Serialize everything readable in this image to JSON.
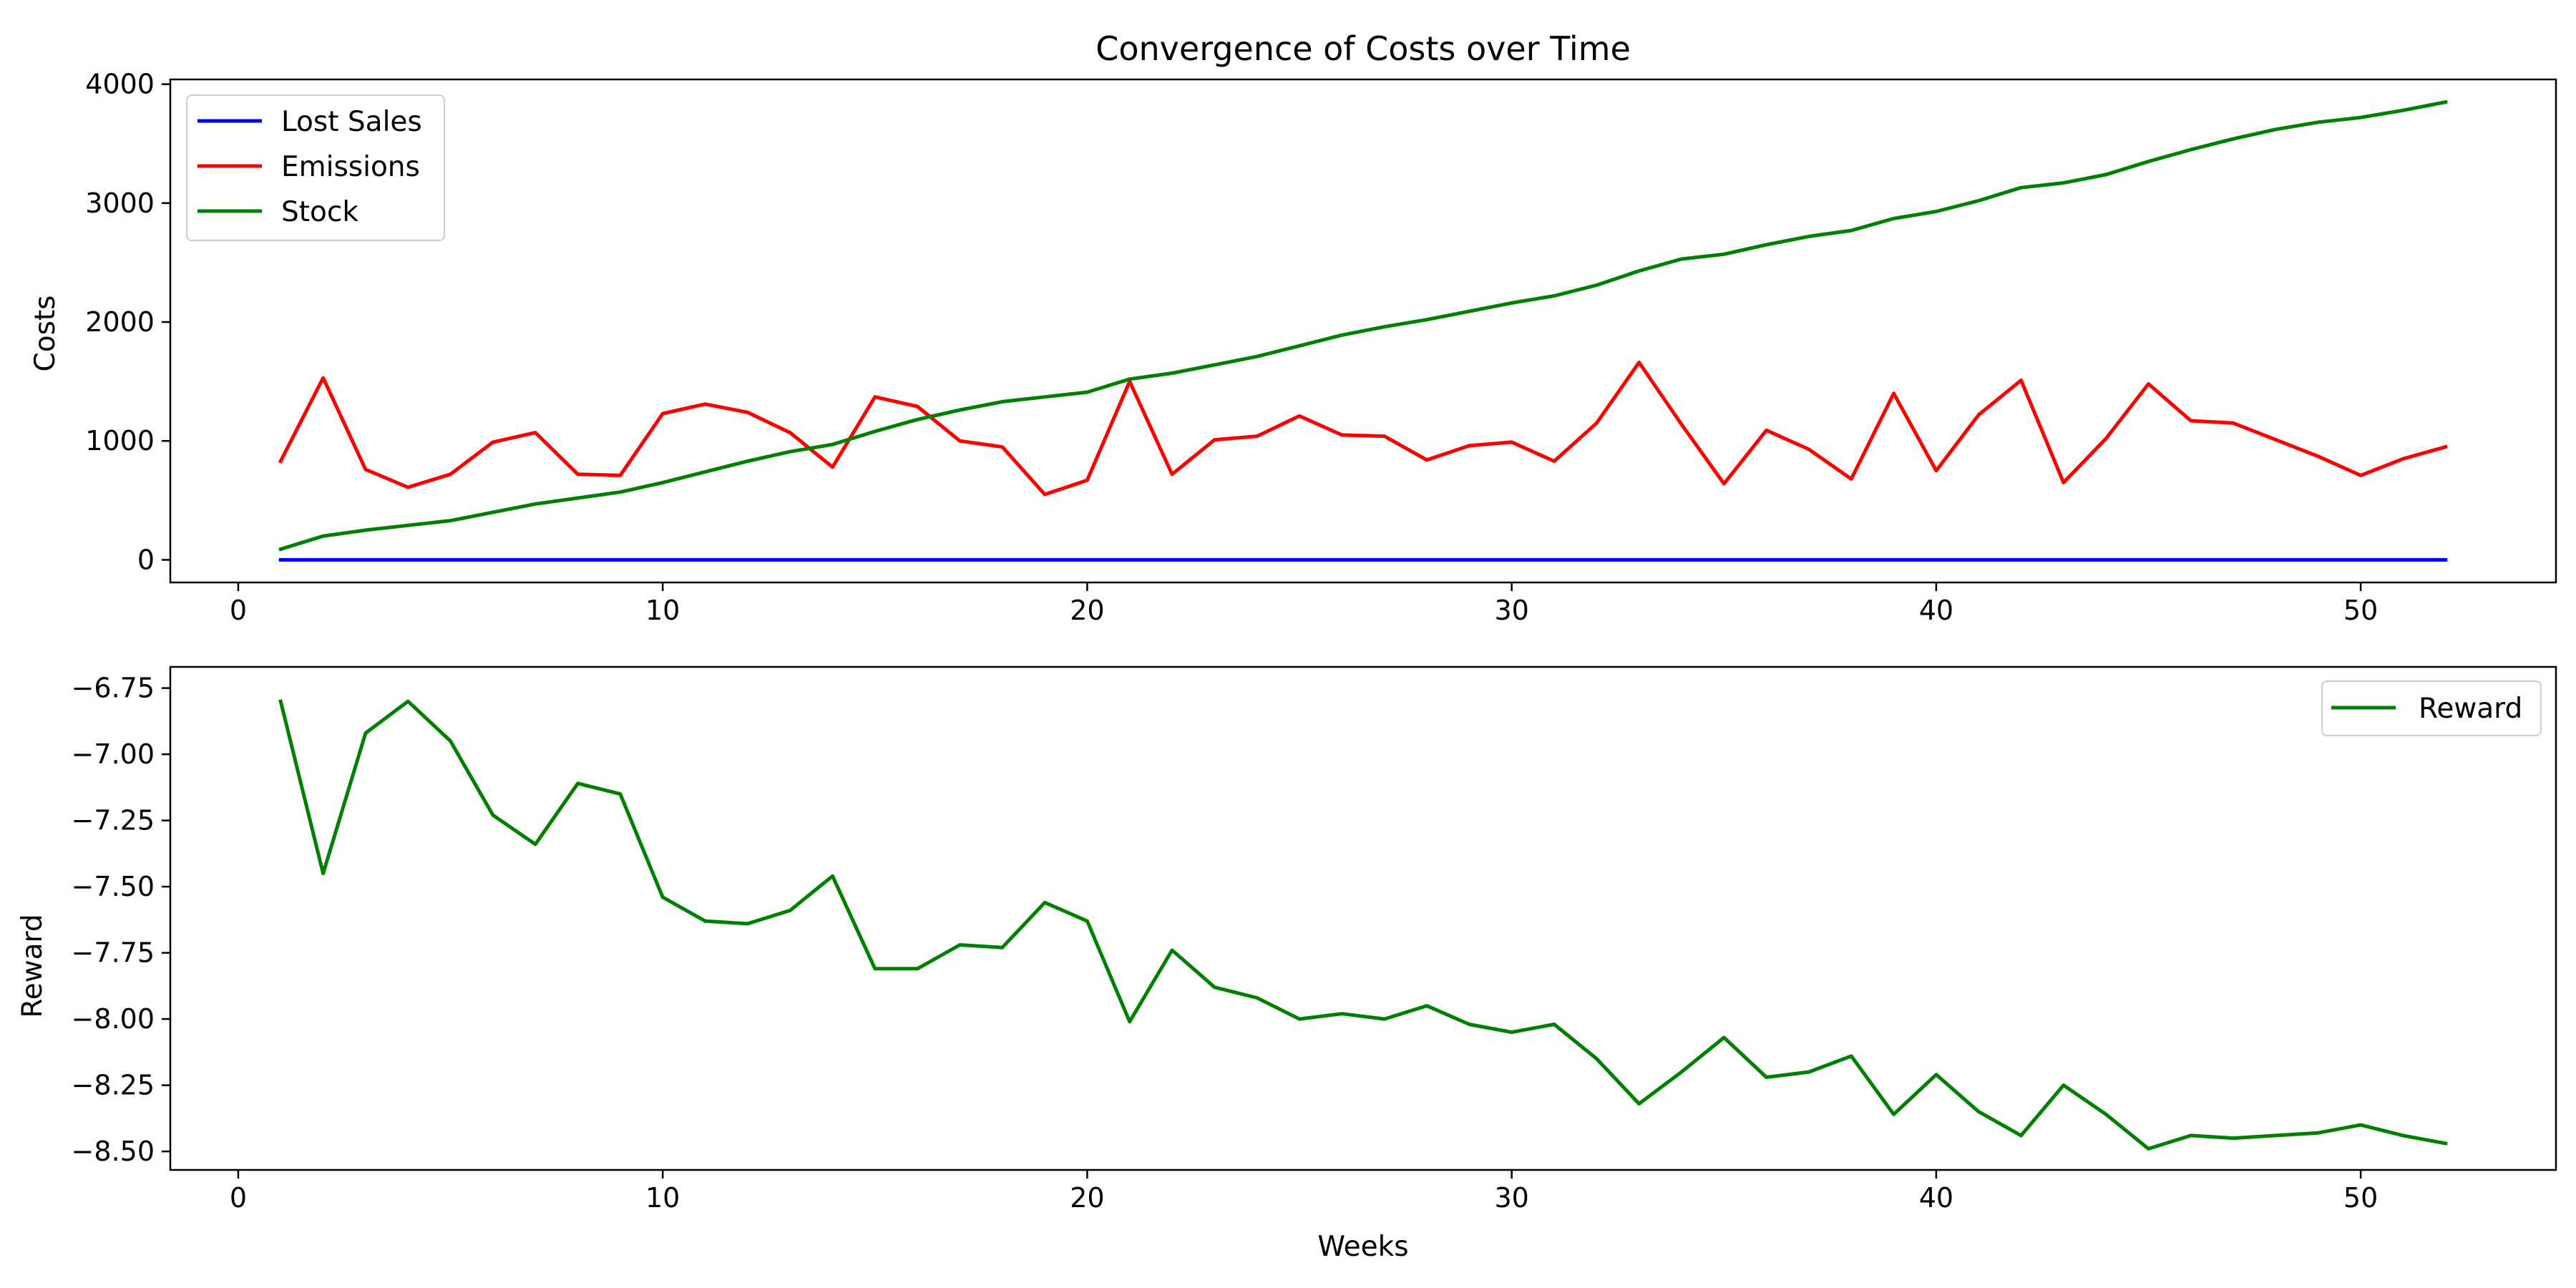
{
  "chart_data": [
    {
      "type": "line",
      "title": "Convergence of Costs over Time",
      "xlabel": "",
      "ylabel": "Costs",
      "xlim": [
        -1.6,
        54.6
      ],
      "ylim": [
        -190,
        4040
      ],
      "xticks": [
        0,
        10,
        20,
        30,
        40,
        50
      ],
      "yticks": [
        0,
        1000,
        2000,
        3000,
        4000
      ],
      "x": [
        1,
        2,
        3,
        4,
        5,
        6,
        7,
        8,
        9,
        10,
        11,
        12,
        13,
        14,
        15,
        16,
        17,
        18,
        19,
        20,
        21,
        22,
        23,
        24,
        25,
        26,
        27,
        28,
        29,
        30,
        31,
        32,
        33,
        34,
        35,
        36,
        37,
        38,
        39,
        40,
        41,
        42,
        43,
        44,
        45,
        46,
        47,
        48,
        49,
        50,
        51,
        52
      ],
      "series": [
        {
          "name": "Lost Sales",
          "color": "#0000ff",
          "values": [
            0,
            0,
            0,
            0,
            0,
            0,
            0,
            0,
            0,
            0,
            0,
            0,
            0,
            0,
            0,
            0,
            0,
            0,
            0,
            0,
            0,
            0,
            0,
            0,
            0,
            0,
            0,
            0,
            0,
            0,
            0,
            0,
            0,
            0,
            0,
            0,
            0,
            0,
            0,
            0,
            0,
            0,
            0,
            0,
            0,
            0,
            0,
            0,
            0,
            0,
            0,
            0
          ]
        },
        {
          "name": "Emissions",
          "color": "#ff0000",
          "values": [
            830,
            1530,
            760,
            610,
            720,
            990,
            1070,
            720,
            710,
            1230,
            1310,
            1240,
            1070,
            780,
            1370,
            1290,
            1000,
            950,
            550,
            670,
            1500,
            720,
            1010,
            1040,
            1210,
            1050,
            1040,
            840,
            960,
            990,
            830,
            1150,
            1660,
            1140,
            640,
            1090,
            930,
            680,
            1400,
            750,
            1220,
            1510,
            650,
            1020,
            1480,
            1170,
            1150,
            1010,
            870,
            710,
            850,
            950
          ]
        },
        {
          "name": "Stock",
          "color": "#008000",
          "values": [
            90,
            200,
            250,
            290,
            330,
            400,
            470,
            520,
            570,
            650,
            740,
            830,
            910,
            970,
            1080,
            1180,
            1260,
            1330,
            1370,
            1410,
            1520,
            1570,
            1640,
            1710,
            1800,
            1890,
            1960,
            2020,
            2090,
            2160,
            2220,
            2310,
            2430,
            2530,
            2570,
            2650,
            2720,
            2770,
            2870,
            2930,
            3020,
            3130,
            3170,
            3240,
            3350,
            3450,
            3540,
            3620,
            3680,
            3720,
            3780,
            3850
          ]
        }
      ],
      "legend": "top-left",
      "grid": false
    },
    {
      "type": "line",
      "title": "",
      "xlabel": "Weeks",
      "ylabel": "Reward",
      "xlim": [
        -1.6,
        54.6
      ],
      "ylim": [
        -8.57,
        -6.67
      ],
      "xticks": [
        0,
        10,
        20,
        30,
        40,
        50
      ],
      "yticks": [
        -6.75,
        -7.0,
        -7.25,
        -7.5,
        -7.75,
        -8.0,
        -8.25,
        -8.5
      ],
      "ytick_labels": [
        "−6.75",
        "−7.00",
        "−7.25",
        "−7.50",
        "−7.75",
        "−8.00",
        "−8.25",
        "−8.50"
      ],
      "x": [
        1,
        2,
        3,
        4,
        5,
        6,
        7,
        8,
        9,
        10,
        11,
        12,
        13,
        14,
        15,
        16,
        17,
        18,
        19,
        20,
        21,
        22,
        23,
        24,
        25,
        26,
        27,
        28,
        29,
        30,
        31,
        32,
        33,
        34,
        35,
        36,
        37,
        38,
        39,
        40,
        41,
        42,
        43,
        44,
        45,
        46,
        47,
        48,
        49,
        50,
        51,
        52
      ],
      "series": [
        {
          "name": "Reward",
          "color": "#008000",
          "values": [
            -6.8,
            -7.45,
            -6.92,
            -6.8,
            -6.95,
            -7.23,
            -7.34,
            -7.11,
            -7.15,
            -7.54,
            -7.63,
            -7.64,
            -7.59,
            -7.46,
            -7.81,
            -7.81,
            -7.72,
            -7.73,
            -7.56,
            -7.63,
            -8.01,
            -7.74,
            -7.88,
            -7.92,
            -8.0,
            -7.98,
            -8.0,
            -7.95,
            -8.02,
            -8.05,
            -8.02,
            -8.15,
            -8.32,
            -8.2,
            -8.07,
            -8.22,
            -8.2,
            -8.14,
            -8.36,
            -8.21,
            -8.35,
            -8.44,
            -8.25,
            -8.36,
            -8.49,
            -8.44,
            -8.45,
            -8.44,
            -8.43,
            -8.4,
            -8.44,
            -8.47
          ]
        }
      ],
      "legend": "top-right",
      "grid": false
    }
  ]
}
